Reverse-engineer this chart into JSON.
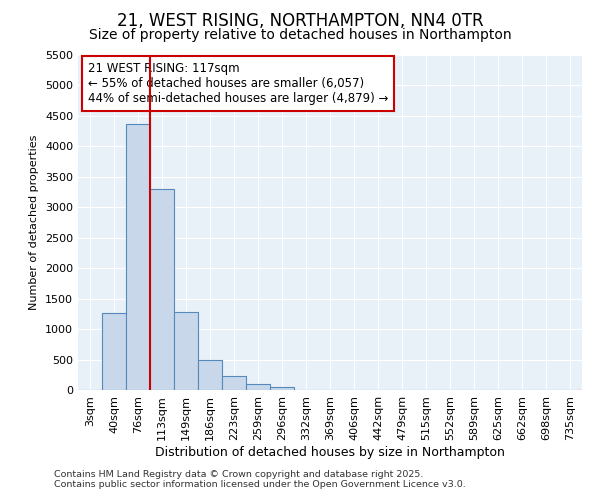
{
  "title1": "21, WEST RISING, NORTHAMPTON, NN4 0TR",
  "title2": "Size of property relative to detached houses in Northampton",
  "xlabel": "Distribution of detached houses by size in Northampton",
  "ylabel": "Number of detached properties",
  "categories": [
    "3sqm",
    "40sqm",
    "76sqm",
    "113sqm",
    "149sqm",
    "186sqm",
    "223sqm",
    "259sqm",
    "296sqm",
    "332sqm",
    "369sqm",
    "406sqm",
    "442sqm",
    "479sqm",
    "515sqm",
    "552sqm",
    "589sqm",
    "625sqm",
    "662sqm",
    "698sqm",
    "735sqm"
  ],
  "values": [
    0,
    1270,
    4370,
    3300,
    1280,
    500,
    225,
    100,
    55,
    0,
    0,
    0,
    0,
    0,
    0,
    0,
    0,
    0,
    0,
    0,
    0
  ],
  "bar_color": "#c8d8ea",
  "bar_edge_color": "#5588bb",
  "vline_x": 2.5,
  "vline_color": "#cc0000",
  "annotation_line1": "21 WEST RISING: 117sqm",
  "annotation_line2": "← 55% of detached houses are smaller (6,057)",
  "annotation_line3": "44% of semi-detached houses are larger (4,879) →",
  "annotation_box_color": "#ffffff",
  "annotation_box_edge_color": "#cc0000",
  "ylim": [
    0,
    5500
  ],
  "yticks": [
    0,
    500,
    1000,
    1500,
    2000,
    2500,
    3000,
    3500,
    4000,
    4500,
    5000,
    5500
  ],
  "footer1": "Contains HM Land Registry data © Crown copyright and database right 2025.",
  "footer2": "Contains public sector information licensed under the Open Government Licence v3.0.",
  "bg_color": "#ffffff",
  "plot_bg_color": "#e8f0f8",
  "grid_color": "#ffffff",
  "title1_fontsize": 12,
  "title2_fontsize": 10,
  "xlabel_fontsize": 9,
  "ylabel_fontsize": 8,
  "tick_fontsize": 8,
  "annotation_fontsize": 8.5,
  "footer_fontsize": 6.8
}
